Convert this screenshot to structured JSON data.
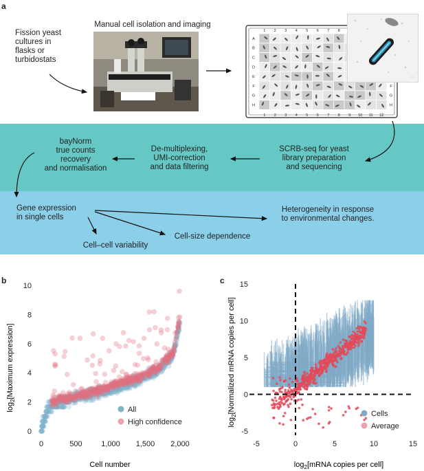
{
  "panel_a": {
    "label": "a",
    "box_fission": "Fission yeast\ncultures in\nflasks or\nturbidostats",
    "box_manual": "Manual cell isolation and imaging",
    "box_bayNorm": "bayNorm\ntrue counts\nrecovery\nand normalisation",
    "box_demux": "De-multiplexing,\nUMI-correction\nand data filtering",
    "box_scrb": "SCRB-seq for yeast\nlibrary preparation\nand sequencing",
    "box_gene": "Gene expression\nin single cells",
    "box_hetero": "Heterogeneity in response\nto environmental changes.",
    "box_cellsize": "Cell-size dependence",
    "box_variability": "Cell–cell variability",
    "plate_cols": [
      "1",
      "2",
      "3",
      "4",
      "5",
      "6",
      "7",
      "8",
      "9",
      "10",
      "11",
      "12"
    ],
    "plate_rows": [
      "A",
      "B",
      "C",
      "D",
      "E",
      "F",
      "G",
      "H"
    ],
    "colors": {
      "teal": "#65c8c4",
      "blue": "#8ccfe9"
    }
  },
  "panel_b": {
    "label": "b",
    "chart_data": {
      "type": "scatter",
      "xlabel": "Cell number",
      "ylabel_prefix": "log",
      "ylabel_sub": "2",
      "ylabel_suffix": "[Maximum expression]",
      "xlim": [
        0,
        2000
      ],
      "ylim": [
        0,
        10
      ],
      "xticks": [
        "0",
        "500",
        "1,000",
        "1,500",
        "2,000"
      ],
      "yticks": [
        "0",
        "2",
        "4",
        "6",
        "8",
        "10"
      ],
      "legend": [
        "All",
        "High confidence"
      ],
      "legend_position": "bottom-right",
      "series": [
        {
          "name": "All",
          "color": "#7fb3cc",
          "trend": [
            [
              0,
              0.1
            ],
            [
              100,
              1.6
            ],
            [
              300,
              2.0
            ],
            [
              500,
              2.3
            ],
            [
              800,
              2.6
            ],
            [
              1100,
              3.0
            ],
            [
              1400,
              3.5
            ],
            [
              1700,
              4.2
            ],
            [
              1900,
              5.2
            ],
            [
              2000,
              7.5
            ]
          ]
        },
        {
          "name": "High confidence",
          "color": "#e0707e",
          "trend": [
            [
              150,
              2.0
            ],
            [
              300,
              2.2
            ],
            [
              500,
              2.4
            ],
            [
              800,
              2.8
            ],
            [
              1100,
              3.2
            ],
            [
              1400,
              3.7
            ],
            [
              1700,
              4.4
            ],
            [
              1900,
              5.4
            ],
            [
              2000,
              8.0
            ]
          ]
        }
      ]
    }
  },
  "panel_c": {
    "label": "c",
    "chart_data": {
      "type": "scatter",
      "xlabel_prefix": "log",
      "xlabel_sub": "2",
      "xlabel_suffix": "[mRNA copies per cell]",
      "ylabel_prefix": "log",
      "ylabel_sub": "2",
      "ylabel_suffix": "[Normalized mRNA copies per cell]",
      "xlim": [
        -5,
        15
      ],
      "ylim": [
        -5,
        15
      ],
      "xticks": [
        "-5",
        "0",
        "5",
        "10",
        "15"
      ],
      "yticks": [
        "-5",
        "0",
        "5",
        "10",
        "15"
      ],
      "legend": [
        "Cells",
        "Average"
      ],
      "legend_position": "bottom-right",
      "series": [
        {
          "name": "Cells",
          "color": "#7fa9c6"
        },
        {
          "name": "Average",
          "color": "#e24a5a"
        }
      ]
    }
  }
}
